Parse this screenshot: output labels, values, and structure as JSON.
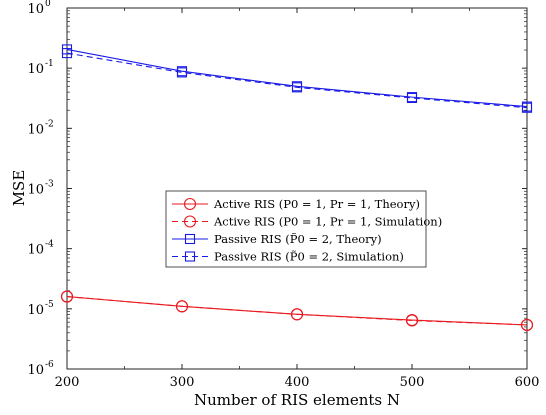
{
  "chart_data": {
    "type": "line",
    "xlabel": "Number of RIS elements N",
    "ylabel": "MSE",
    "x_scale": "linear",
    "y_scale": "log",
    "xlim": [
      200,
      600
    ],
    "ylim": [
      1e-06,
      1
    ],
    "x_ticks": [
      200,
      300,
      400,
      500,
      600
    ],
    "y_ticks": [
      {
        "base": "10",
        "exp": "-6",
        "value": 1e-06
      },
      {
        "base": "10",
        "exp": "-5",
        "value": 1e-05
      },
      {
        "base": "10",
        "exp": "-4",
        "value": 0.0001
      },
      {
        "base": "10",
        "exp": "-3",
        "value": 0.001
      },
      {
        "base": "10",
        "exp": "-2",
        "value": 0.01
      },
      {
        "base": "10",
        "exp": "-1",
        "value": 0.1
      },
      {
        "base": "10",
        "exp": "0",
        "value": 1
      }
    ],
    "x": [
      200,
      300,
      400,
      500,
      600
    ],
    "grid": false,
    "legend_position": "center",
    "series": [
      {
        "name": "Active RIS (P0 = 1, Pr = 1, Theory)",
        "values": [
          1.6e-05,
          1.1e-05,
          8.1e-06,
          6.5e-06,
          5.4e-06
        ],
        "color": "#e8191f",
        "dash": "solid",
        "marker": "circle"
      },
      {
        "name": "Active RIS (P0 = 1, Pr = 1, Simulation)",
        "values": [
          1.6e-05,
          1.1e-05,
          8.1e-06,
          6.4e-06,
          5.4e-06
        ],
        "color": "#e8191f",
        "dash": "dashed",
        "marker": "circle"
      },
      {
        "name": "Passive RIS (P̃0 = 2, Theory)",
        "values": [
          0.205,
          0.089,
          0.05,
          0.033,
          0.023
        ],
        "color": "#1a1ae6",
        "dash": "solid",
        "marker": "square"
      },
      {
        "name": "Passive RIS (P̃0 = 2, Simulation)",
        "values": [
          0.178,
          0.085,
          0.048,
          0.032,
          0.022
        ],
        "color": "#1a1ae6",
        "dash": "dashed",
        "marker": "square"
      }
    ]
  }
}
